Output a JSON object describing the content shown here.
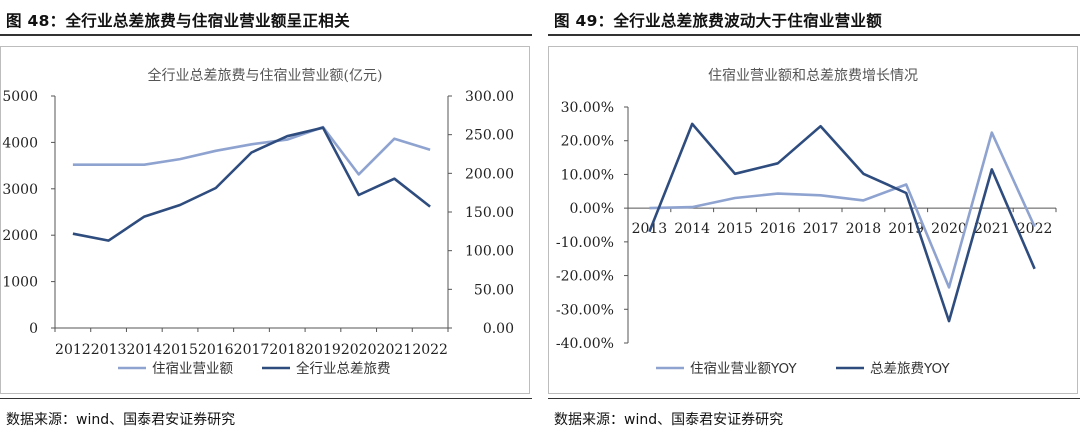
{
  "left": {
    "figure_title": "图 48：全行业总差旅费与住宿业营业额呈正相关",
    "source": "数据来源：wind、国泰君安证券研究"
  },
  "right": {
    "figure_title": "图 49：全行业总差旅费波动大于住宿业营业额",
    "source": "数据来源：wind、国泰君安证券研究"
  },
  "chart_data": [
    {
      "type": "line",
      "title": "全行业总差旅费与住宿业营业额(亿元)",
      "xlabel": "",
      "categories": [
        "2012",
        "2013",
        "2014",
        "2015",
        "2016",
        "2017",
        "2018",
        "2019",
        "2020",
        "2021",
        "2022"
      ],
      "y_left_ticks": [
        "0",
        "1000",
        "2000",
        "3000",
        "4000",
        "5000"
      ],
      "y_right_ticks": [
        "0.00",
        "50.00",
        "100.00",
        "150.00",
        "200.00",
        "250.00",
        "300.00"
      ],
      "ylim_left": [
        0,
        5000
      ],
      "ylim_right": [
        0,
        300
      ],
      "grid": false,
      "legend_position": "bottom",
      "series": [
        {
          "name": "住宿业营业额",
          "axis": "left",
          "color": "#8FA3D0",
          "values": [
            3520,
            3520,
            3520,
            3640,
            3820,
            3960,
            4060,
            4330,
            3310,
            4080,
            3840
          ]
        },
        {
          "name": "全行业总差旅费",
          "axis": "right",
          "color": "#2E4C7E",
          "values": [
            122,
            113,
            144,
            159,
            181,
            227,
            248,
            259,
            172,
            193,
            157
          ]
        }
      ]
    },
    {
      "type": "line",
      "title": "住宿业营业额和总差旅费增长情况",
      "xlabel": "",
      "categories": [
        "2013",
        "2014",
        "2015",
        "2016",
        "2017",
        "2018",
        "2019",
        "2020",
        "2021",
        "2022"
      ],
      "y_ticks": [
        "30.00%",
        "20.00%",
        "10.00%",
        "0.00%",
        "-10.00%",
        "-20.00%",
        "-30.00%",
        "-40.00%"
      ],
      "ylim": [
        -40,
        30
      ],
      "grid": false,
      "legend_position": "bottom",
      "series": [
        {
          "name": "住宿业营业额YOY",
          "color": "#8FA3D0",
          "values": [
            0.0,
            0.3,
            3.0,
            4.3,
            3.8,
            2.3,
            7.0,
            -23.5,
            22.4,
            -5.5
          ]
        },
        {
          "name": "总差旅费YOY",
          "color": "#2E4C7E",
          "values": [
            -7.0,
            25.0,
            10.2,
            13.3,
            24.3,
            10.2,
            4.5,
            -33.5,
            11.5,
            -18.0
          ]
        }
      ]
    }
  ]
}
